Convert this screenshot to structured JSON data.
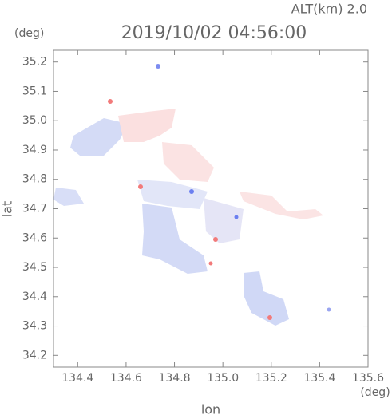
{
  "chart_data": {
    "type": "map",
    "title": "2019/10/02 04:56:00",
    "subtitle": "ALT(km) 2.0",
    "x_label": "lon",
    "x_unit": "(deg)",
    "y_label": "lat",
    "y_unit": "(deg)",
    "xlim": [
      134.3,
      135.6
    ],
    "xticks": [
      134.4,
      134.6,
      134.8,
      {
        "value": 135,
        "label": "135.0"
      },
      135.2,
      135.4,
      135.6
    ],
    "ylim": [
      34.16,
      35.24
    ],
    "yticks": [
      34.2,
      34.3,
      34.4,
      34.5,
      34.6,
      34.7,
      34.8,
      34.9,
      {
        "value": 35,
        "label": "35.0"
      },
      35.1,
      35.2
    ]
  }
}
